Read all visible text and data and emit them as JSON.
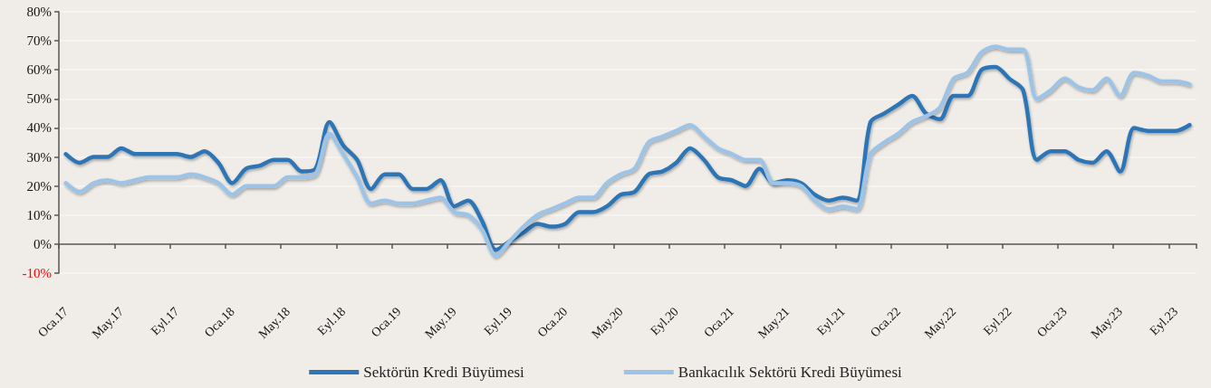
{
  "chart_data": {
    "type": "line",
    "categories": [
      "Oca.17",
      null,
      null,
      null,
      "May.17",
      null,
      null,
      null,
      "Eyl.17",
      null,
      null,
      null,
      "Oca.18",
      null,
      null,
      null,
      "May.18",
      null,
      null,
      null,
      "Eyl.18",
      null,
      null,
      null,
      "Oca.19",
      null,
      null,
      null,
      "May.19",
      null,
      null,
      null,
      "Eyl.19",
      null,
      null,
      null,
      "Oca.20",
      null,
      null,
      null,
      "May.20",
      null,
      null,
      null,
      "Eyl.20",
      null,
      null,
      null,
      "Oca.21",
      null,
      null,
      null,
      "May.21",
      null,
      null,
      null,
      "Eyl.21",
      null,
      null,
      null,
      "Oca.22",
      null,
      null,
      null,
      "May.22",
      null,
      null,
      null,
      "Eyl.22",
      null,
      null,
      null,
      "Oca.23",
      null,
      null,
      null,
      "May.23",
      null,
      null,
      null,
      "Eyl.23",
      null
    ],
    "series": [
      {
        "name": "Sektörün Kredi Büyümesi",
        "color": "#2e75b6",
        "values": [
          31,
          28,
          30,
          30,
          33,
          31,
          31,
          31,
          31,
          30,
          32,
          28,
          21,
          26,
          27,
          29,
          29,
          25,
          26,
          42,
          34,
          29,
          19,
          24,
          24,
          19,
          19,
          22,
          13,
          15,
          8,
          -2,
          1,
          4,
          7,
          6,
          7,
          11,
          11,
          13,
          17,
          18,
          24,
          25,
          28,
          33,
          29,
          23,
          22,
          20,
          26,
          21,
          22,
          21,
          17,
          15,
          16,
          15,
          42,
          45,
          48,
          51,
          45,
          43,
          51,
          51,
          60,
          61,
          57,
          53,
          29,
          32,
          32,
          29,
          28,
          32,
          25,
          40,
          39,
          39,
          39,
          41
        ]
      },
      {
        "name": "Bankacılık Sektörü Kredi Büyümesi",
        "color": "#9dc3e6",
        "values": [
          21,
          18,
          21,
          22,
          21,
          22,
          23,
          23,
          23,
          24,
          23,
          21,
          17,
          20,
          20,
          20,
          23,
          23,
          24,
          38,
          31,
          23,
          14,
          15,
          14,
          14,
          15,
          16,
          11,
          10,
          5,
          -4,
          1,
          6,
          10,
          12,
          14,
          16,
          16,
          21,
          24,
          26,
          35,
          37,
          39,
          41,
          37,
          33,
          31,
          29,
          29,
          21,
          21,
          20,
          15,
          12,
          13,
          12,
          31,
          35,
          38,
          42,
          44,
          47,
          57,
          59,
          66,
          68,
          67,
          67,
          50,
          53,
          57,
          54,
          53,
          57,
          51,
          59,
          58,
          56,
          56,
          55
        ]
      }
    ],
    "ylim": [
      -10,
      80
    ],
    "yticks": [
      {
        "value": -10,
        "label": "-10%"
      },
      {
        "value": 0,
        "label": "0%"
      },
      {
        "value": 10,
        "label": "10%"
      },
      {
        "value": 20,
        "label": "20%"
      },
      {
        "value": 30,
        "label": "30%"
      },
      {
        "value": 40,
        "label": "40%"
      },
      {
        "value": 50,
        "label": "50%"
      },
      {
        "value": 60,
        "label": "60%"
      },
      {
        "value": 70,
        "label": "70%"
      },
      {
        "value": 80,
        "label": "80%"
      }
    ],
    "grid": "y",
    "legend": "bottom",
    "marker": "none",
    "line_style": "solid"
  }
}
